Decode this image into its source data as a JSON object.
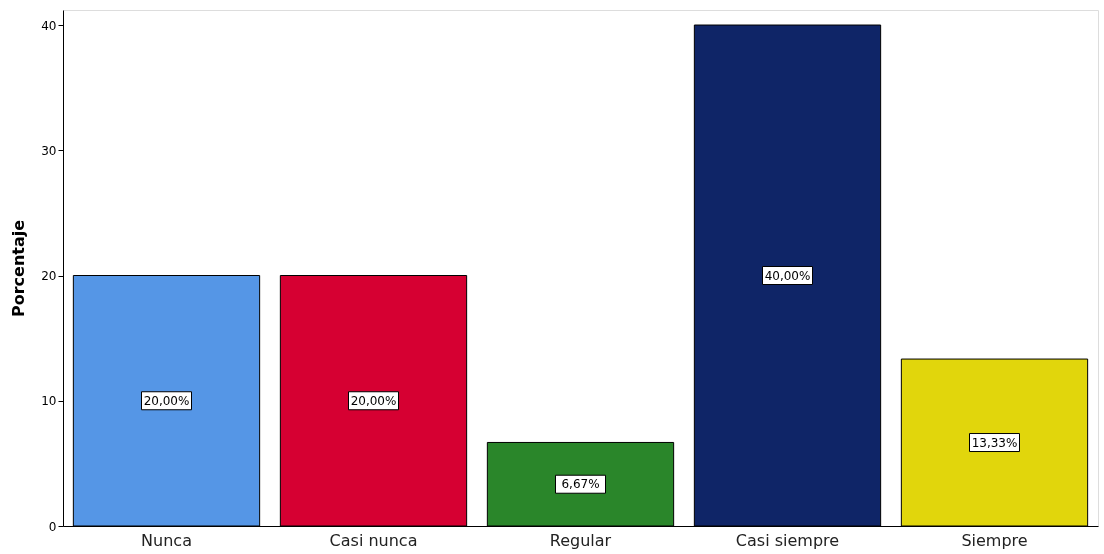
{
  "chart_data": {
    "type": "bar",
    "ylabel": "Porcentaje",
    "categories": [
      "Nunca",
      "Casi nunca",
      "Regular",
      "Casi siempre",
      "Siempre"
    ],
    "values": [
      20.0,
      20.0,
      6.67,
      40.0,
      13.33
    ],
    "colors": [
      "#5596e6",
      "#d60032",
      "#2a862a",
      "#0f2567",
      "#e1d60c"
    ],
    "value_labels": [
      "20,00%",
      "20,00%",
      "6,67%",
      "40,00%",
      "13,33%"
    ],
    "ylim": [
      0,
      41.2
    ],
    "yticks": [
      0,
      10,
      20,
      30,
      40
    ],
    "grid": false,
    "legend": false
  }
}
